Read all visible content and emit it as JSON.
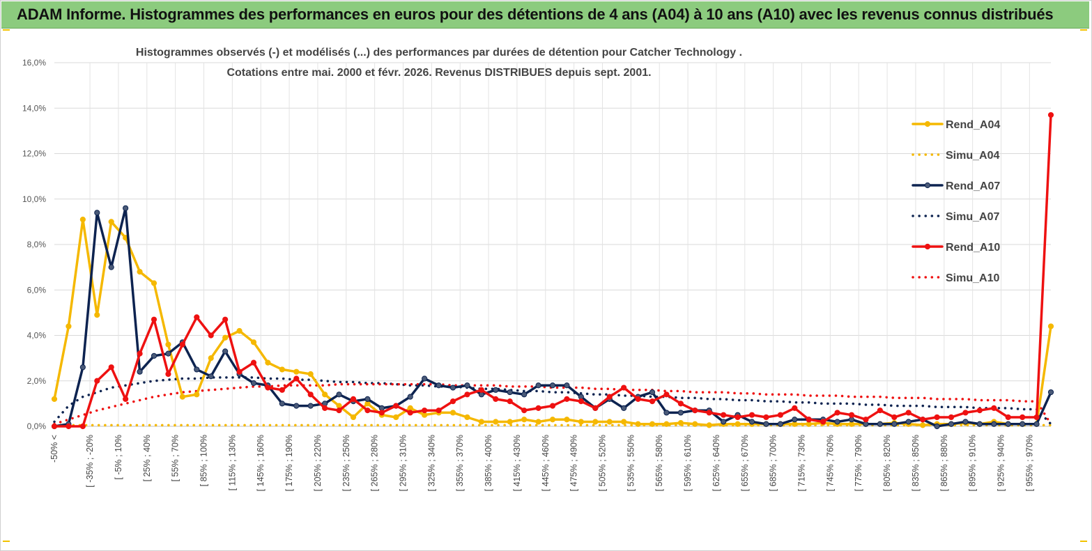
{
  "banner": {
    "title": "ADAM Informe. Histogrammes des performances en euros pour des détentions de 4 ans (A04) à 10 ans (A10) avec les revenus connus distribués",
    "color": "#8ccb7e"
  },
  "chart_data": {
    "type": "line",
    "title_lines": [
      "Histogrammes observés (-) et modélisés (...) des performances par durées de détention pour Catcher Technology .",
      "Cotations entre mai. 2000 et févr. 2026. Revenus DISTRIBUES depuis sept. 2001."
    ],
    "y_tick_labels": [
      "0,0%",
      "2,0%",
      "4,0%",
      "6,0%",
      "8,0%",
      "10,0%",
      "12,0%",
      "14,0%",
      "16,0%"
    ],
    "ylim": [
      0,
      16
    ],
    "ylabel": "",
    "xlabel": "",
    "grid": true,
    "legend_position": "right",
    "x_tick_labels": [
      "-50% <",
      "[ -35% ; -20%",
      "[ -5% ; 10%",
      "[ 25% ; 40%",
      "[ 55% ; 70%",
      "[ 85% ; 100%",
      "[ 115% ; 130%",
      "[ 145% ; 160%",
      "[ 175% ; 190%",
      "[ 205% ; 220%",
      "[ 235% ; 250%",
      "[ 265% ; 280%",
      "[ 295% ; 310%",
      "[ 325% ; 340%",
      "[ 355% ; 370%",
      "[ 385% ; 400%",
      "[ 415% ; 430%",
      "[ 445% ; 460%",
      "[ 475% ; 490%",
      "[ 505% ; 520%",
      "[ 535% ; 550%",
      "[ 565% ; 580%",
      "[ 595% ; 610%",
      "[ 625% ; 640%",
      "[ 655% ; 670%",
      "[ 685% ; 700%",
      "[ 715% ; 730%",
      "[ 745% ; 760%",
      "[ 775% ; 790%",
      "[ 805% ; 820%",
      "[ 835% ; 850%",
      "[ 865% ; 880%",
      "[ 895% ; 910%",
      "[ 925% ; 940%",
      "[ 955% ; 970%"
    ],
    "category_count": 71,
    "series": [
      {
        "name": "Rend_A04",
        "color": "#f5b800",
        "style": "solid",
        "values": [
          1.2,
          4.4,
          9.1,
          4.9,
          9.0,
          8.3,
          6.8,
          6.3,
          3.6,
          1.3,
          1.4,
          3.0,
          3.9,
          4.2,
          3.7,
          2.8,
          2.5,
          2.4,
          2.3,
          1.4,
          0.9,
          0.4,
          1.0,
          0.5,
          0.4,
          0.8,
          0.5,
          0.6,
          0.6,
          0.4,
          0.2,
          0.2,
          0.2,
          0.3,
          0.2,
          0.3,
          0.3,
          0.2,
          0.2,
          0.2,
          0.2,
          0.1,
          0.1,
          0.1,
          0.15,
          0.1,
          0.05,
          0.1,
          0.1,
          0.1,
          0.1,
          0.1,
          0.1,
          0.1,
          0.15,
          0.1,
          0.1,
          0.1,
          0.1,
          0.15,
          0.1,
          0.05,
          0.1,
          0.1,
          0.15,
          0.1,
          0.2,
          0.1,
          0.1,
          0.1,
          4.4
        ]
      },
      {
        "name": "Simu_A04",
        "color": "#f5b800",
        "style": "dotted",
        "values": [
          0.05,
          0.05,
          0.05,
          0.05,
          0.05,
          0.05,
          0.05,
          0.05,
          0.05,
          0.05,
          0.05,
          0.05,
          0.05,
          0.05,
          0.05,
          0.05,
          0.05,
          0.05,
          0.05,
          0.05,
          0.05,
          0.05,
          0.05,
          0.05,
          0.05,
          0.05,
          0.05,
          0.05,
          0.05,
          0.05,
          0.05,
          0.05,
          0.05,
          0.05,
          0.05,
          0.05,
          0.05,
          0.05,
          0.05,
          0.05,
          0.05,
          0.05,
          0.05,
          0.05,
          0.05,
          0.05,
          0.05,
          0.05,
          0.05,
          0.05,
          0.05,
          0.05,
          0.05,
          0.05,
          0.05,
          0.05,
          0.05,
          0.05,
          0.05,
          0.05,
          0.05,
          0.05,
          0.05,
          0.05,
          0.05,
          0.05,
          0.05,
          0.05,
          0.05,
          0.05,
          0.05
        ]
      },
      {
        "name": "Rend_A07",
        "color": "#0d2350",
        "style": "solid",
        "values": [
          0.0,
          0.1,
          2.6,
          9.4,
          7.0,
          9.6,
          2.4,
          3.1,
          3.2,
          3.7,
          2.5,
          2.2,
          3.3,
          2.3,
          1.9,
          1.8,
          1.0,
          0.9,
          0.9,
          1.0,
          1.4,
          1.1,
          1.2,
          0.8,
          0.9,
          1.3,
          2.1,
          1.8,
          1.7,
          1.8,
          1.4,
          1.6,
          1.5,
          1.4,
          1.8,
          1.8,
          1.8,
          1.3,
          0.8,
          1.2,
          0.8,
          1.3,
          1.5,
          0.6,
          0.6,
          0.7,
          0.7,
          0.2,
          0.5,
          0.2,
          0.1,
          0.1,
          0.3,
          0.3,
          0.3,
          0.2,
          0.3,
          0.1,
          0.1,
          0.1,
          0.2,
          0.3,
          0.0,
          0.1,
          0.2,
          0.1,
          0.1,
          0.1,
          0.1,
          0.1,
          1.5
        ]
      },
      {
        "name": "Simu_A07",
        "color": "#0d2350",
        "style": "dotted",
        "values": [
          0.2,
          0.9,
          1.3,
          1.5,
          1.7,
          1.8,
          1.9,
          2.0,
          2.05,
          2.1,
          2.1,
          2.15,
          2.15,
          2.15,
          2.15,
          2.1,
          2.1,
          2.05,
          2.05,
          2.0,
          1.95,
          1.95,
          1.9,
          1.9,
          1.85,
          1.8,
          1.8,
          1.75,
          1.75,
          1.7,
          1.65,
          1.65,
          1.6,
          1.55,
          1.55,
          1.5,
          1.5,
          1.45,
          1.4,
          1.4,
          1.35,
          1.35,
          1.3,
          1.3,
          1.25,
          1.25,
          1.2,
          1.2,
          1.15,
          1.15,
          1.1,
          1.1,
          1.05,
          1.05,
          1.0,
          1.0,
          1.0,
          0.95,
          0.95,
          0.9,
          0.9,
          0.9,
          0.85,
          0.85,
          0.85,
          0.8,
          0.8,
          0.8,
          0.75,
          0.75,
          0.1
        ]
      },
      {
        "name": "Rend_A10",
        "color": "#ee1111",
        "style": "solid",
        "values": [
          0.0,
          0.0,
          0.0,
          2.0,
          2.6,
          1.2,
          3.2,
          4.7,
          2.3,
          3.6,
          4.8,
          4.0,
          4.7,
          2.4,
          2.8,
          1.7,
          1.6,
          2.1,
          1.4,
          0.8,
          0.7,
          1.2,
          0.7,
          0.6,
          0.9,
          0.6,
          0.7,
          0.7,
          1.1,
          1.4,
          1.6,
          1.2,
          1.1,
          0.7,
          0.8,
          0.9,
          1.2,
          1.1,
          0.8,
          1.3,
          1.7,
          1.2,
          1.1,
          1.4,
          1.0,
          0.7,
          0.6,
          0.5,
          0.4,
          0.5,
          0.4,
          0.5,
          0.8,
          0.3,
          0.2,
          0.6,
          0.5,
          0.3,
          0.7,
          0.4,
          0.6,
          0.3,
          0.4,
          0.4,
          0.6,
          0.7,
          0.8,
          0.4,
          0.4,
          0.4,
          13.7
        ]
      },
      {
        "name": "Simu_A10",
        "color": "#ee1111",
        "style": "dotted",
        "values": [
          0.1,
          0.3,
          0.5,
          0.7,
          0.85,
          1.0,
          1.15,
          1.3,
          1.4,
          1.5,
          1.55,
          1.6,
          1.65,
          1.7,
          1.75,
          1.75,
          1.8,
          1.8,
          1.8,
          1.8,
          1.85,
          1.85,
          1.85,
          1.85,
          1.85,
          1.85,
          1.85,
          1.85,
          1.8,
          1.8,
          1.8,
          1.8,
          1.75,
          1.75,
          1.75,
          1.7,
          1.7,
          1.7,
          1.65,
          1.65,
          1.6,
          1.6,
          1.6,
          1.55,
          1.55,
          1.5,
          1.5,
          1.5,
          1.45,
          1.45,
          1.4,
          1.4,
          1.4,
          1.35,
          1.35,
          1.35,
          1.3,
          1.3,
          1.3,
          1.25,
          1.25,
          1.25,
          1.2,
          1.2,
          1.2,
          1.15,
          1.15,
          1.15,
          1.1,
          1.1,
          0.1
        ]
      }
    ]
  }
}
